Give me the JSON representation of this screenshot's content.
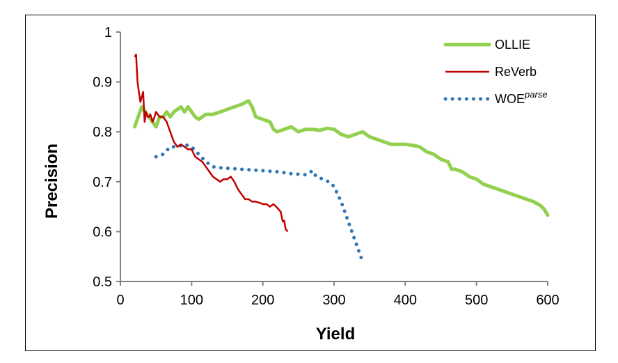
{
  "chart_data": {
    "type": "line",
    "title": "",
    "xlabel": "Yield",
    "ylabel": "Precision",
    "xlim": [
      0,
      600
    ],
    "ylim": [
      0.5,
      1
    ],
    "x_ticks": [
      "0",
      "100",
      "200",
      "300",
      "400",
      "500",
      "600"
    ],
    "y_ticks": [
      "0.5",
      "0.6",
      "0.7",
      "0.8",
      "0.9",
      "1"
    ],
    "grid": false,
    "legend_position": "top-right",
    "series": [
      {
        "name": "OLLIE",
        "color": "#92d050",
        "style": "solid-thick",
        "points": [
          [
            20,
            0.81
          ],
          [
            25,
            0.83
          ],
          [
            30,
            0.85
          ],
          [
            35,
            0.84
          ],
          [
            40,
            0.83
          ],
          [
            45,
            0.82
          ],
          [
            50,
            0.81
          ],
          [
            55,
            0.83
          ],
          [
            60,
            0.83
          ],
          [
            65,
            0.84
          ],
          [
            70,
            0.83
          ],
          [
            75,
            0.84
          ],
          [
            80,
            0.845
          ],
          [
            85,
            0.85
          ],
          [
            90,
            0.84
          ],
          [
            95,
            0.85
          ],
          [
            100,
            0.84
          ],
          [
            105,
            0.83
          ],
          [
            110,
            0.825
          ],
          [
            115,
            0.83
          ],
          [
            120,
            0.835
          ],
          [
            130,
            0.835
          ],
          [
            140,
            0.84
          ],
          [
            150,
            0.845
          ],
          [
            160,
            0.85
          ],
          [
            170,
            0.855
          ],
          [
            180,
            0.862
          ],
          [
            185,
            0.85
          ],
          [
            190,
            0.83
          ],
          [
            200,
            0.825
          ],
          [
            210,
            0.82
          ],
          [
            215,
            0.805
          ],
          [
            220,
            0.8
          ],
          [
            230,
            0.805
          ],
          [
            240,
            0.81
          ],
          [
            250,
            0.8
          ],
          [
            260,
            0.805
          ],
          [
            270,
            0.805
          ],
          [
            280,
            0.803
          ],
          [
            290,
            0.807
          ],
          [
            300,
            0.805
          ],
          [
            310,
            0.795
          ],
          [
            320,
            0.79
          ],
          [
            330,
            0.795
          ],
          [
            340,
            0.8
          ],
          [
            350,
            0.79
          ],
          [
            360,
            0.785
          ],
          [
            370,
            0.78
          ],
          [
            380,
            0.775
          ],
          [
            390,
            0.775
          ],
          [
            400,
            0.775
          ],
          [
            410,
            0.773
          ],
          [
            420,
            0.77
          ],
          [
            430,
            0.76
          ],
          [
            440,
            0.755
          ],
          [
            450,
            0.745
          ],
          [
            460,
            0.74
          ],
          [
            465,
            0.725
          ],
          [
            470,
            0.725
          ],
          [
            480,
            0.72
          ],
          [
            490,
            0.71
          ],
          [
            500,
            0.705
          ],
          [
            510,
            0.695
          ],
          [
            520,
            0.69
          ],
          [
            530,
            0.685
          ],
          [
            540,
            0.68
          ],
          [
            550,
            0.675
          ],
          [
            560,
            0.67
          ],
          [
            570,
            0.665
          ],
          [
            580,
            0.66
          ],
          [
            590,
            0.652
          ],
          [
            595,
            0.645
          ],
          [
            600,
            0.633
          ]
        ]
      },
      {
        "name": "ReVerb",
        "color": "#c00000",
        "style": "solid-thin",
        "points": [
          [
            20,
            0.95
          ],
          [
            22,
            0.955
          ],
          [
            24,
            0.9
          ],
          [
            26,
            0.88
          ],
          [
            28,
            0.86
          ],
          [
            30,
            0.87
          ],
          [
            32,
            0.88
          ],
          [
            34,
            0.82
          ],
          [
            36,
            0.84
          ],
          [
            38,
            0.83
          ],
          [
            40,
            0.83
          ],
          [
            42,
            0.835
          ],
          [
            45,
            0.82
          ],
          [
            48,
            0.83
          ],
          [
            50,
            0.84
          ],
          [
            55,
            0.83
          ],
          [
            60,
            0.83
          ],
          [
            65,
            0.82
          ],
          [
            70,
            0.8
          ],
          [
            75,
            0.78
          ],
          [
            80,
            0.77
          ],
          [
            85,
            0.775
          ],
          [
            90,
            0.77
          ],
          [
            95,
            0.765
          ],
          [
            100,
            0.765
          ],
          [
            105,
            0.75
          ],
          [
            110,
            0.745
          ],
          [
            115,
            0.74
          ],
          [
            120,
            0.73
          ],
          [
            125,
            0.72
          ],
          [
            130,
            0.71
          ],
          [
            135,
            0.705
          ],
          [
            140,
            0.7
          ],
          [
            145,
            0.705
          ],
          [
            150,
            0.705
          ],
          [
            155,
            0.71
          ],
          [
            160,
            0.7
          ],
          [
            165,
            0.685
          ],
          [
            170,
            0.675
          ],
          [
            175,
            0.665
          ],
          [
            180,
            0.665
          ],
          [
            185,
            0.66
          ],
          [
            190,
            0.66
          ],
          [
            195,
            0.658
          ],
          [
            200,
            0.655
          ],
          [
            205,
            0.655
          ],
          [
            210,
            0.65
          ],
          [
            215,
            0.655
          ],
          [
            220,
            0.648
          ],
          [
            225,
            0.64
          ],
          [
            228,
            0.62
          ],
          [
            230,
            0.622
          ],
          [
            232,
            0.605
          ],
          [
            235,
            0.6
          ]
        ]
      },
      {
        "name": "WOE",
        "name_superscript": "parse",
        "color": "#2e75b6",
        "style": "dotted",
        "points": [
          [
            50,
            0.75
          ],
          [
            60,
            0.755
          ],
          [
            70,
            0.77
          ],
          [
            80,
            0.77
          ],
          [
            90,
            0.775
          ],
          [
            100,
            0.77
          ],
          [
            110,
            0.755
          ],
          [
            120,
            0.74
          ],
          [
            130,
            0.73
          ],
          [
            140,
            0.728
          ],
          [
            160,
            0.726
          ],
          [
            180,
            0.724
          ],
          [
            200,
            0.722
          ],
          [
            220,
            0.72
          ],
          [
            240,
            0.716
          ],
          [
            260,
            0.714
          ],
          [
            270,
            0.722
          ],
          [
            275,
            0.71
          ],
          [
            285,
            0.705
          ],
          [
            295,
            0.698
          ],
          [
            300,
            0.69
          ],
          [
            305,
            0.675
          ],
          [
            310,
            0.66
          ],
          [
            315,
            0.64
          ],
          [
            320,
            0.62
          ],
          [
            325,
            0.6
          ],
          [
            330,
            0.58
          ],
          [
            335,
            0.56
          ],
          [
            338,
            0.548
          ]
        ]
      }
    ]
  }
}
